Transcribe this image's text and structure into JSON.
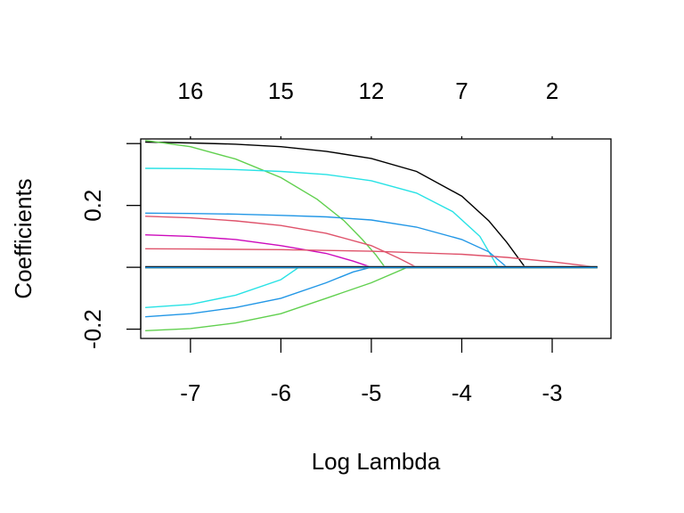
{
  "chart_data": {
    "type": "line",
    "title": "",
    "xlabel": "Log Lambda",
    "ylabel": "Coefficients",
    "xlim": [
      -7.55,
      -2.35
    ],
    "ylim": [
      -0.23,
      0.415
    ],
    "x_ticks": [
      -7,
      -6,
      -5,
      -4,
      -3
    ],
    "x_tick_labels": [
      "-7",
      "-6",
      "-5",
      "-4",
      "-3"
    ],
    "y_ticks": [
      -0.2,
      0.0,
      0.2,
      0.4
    ],
    "y_tick_labels": [
      "-0.2",
      "",
      "0.2",
      ""
    ],
    "top_axis": {
      "positions": [
        -7,
        -6,
        -5,
        -4,
        -3
      ],
      "labels": [
        "16",
        "15",
        "12",
        "7",
        "2"
      ]
    },
    "grid": false,
    "legend": "none",
    "series": [
      {
        "color": "#000000",
        "x": [
          -7.5,
          -7.0,
          -6.5,
          -6.0,
          -5.5,
          -5.0,
          -4.5,
          -4.0,
          -3.7,
          -3.5,
          -3.3,
          -2.5
        ],
        "y": [
          0.405,
          0.402,
          0.398,
          0.39,
          0.375,
          0.352,
          0.31,
          0.23,
          0.15,
          0.08,
          0.0,
          0.0
        ]
      },
      {
        "color": "#61D04F",
        "x": [
          -7.5,
          -7.0,
          -6.5,
          -6.0,
          -5.6,
          -5.3,
          -5.1,
          -4.95,
          -4.85,
          -2.5
        ],
        "y": [
          0.41,
          0.39,
          0.35,
          0.29,
          0.22,
          0.15,
          0.09,
          0.04,
          0.0,
          0.0
        ]
      },
      {
        "color": "#28E2E5",
        "x": [
          -7.5,
          -7.0,
          -6.5,
          -6.0,
          -5.5,
          -5.0,
          -4.5,
          -4.1,
          -3.8,
          -3.6,
          -2.5
        ],
        "y": [
          0.32,
          0.319,
          0.316,
          0.31,
          0.3,
          0.28,
          0.24,
          0.18,
          0.1,
          0.0,
          0.0
        ]
      },
      {
        "color": "#2297E6",
        "x": [
          -7.5,
          -7.0,
          -6.5,
          -6.0,
          -5.5,
          -5.0,
          -4.5,
          -4.0,
          -3.7,
          -3.5,
          -2.5
        ],
        "y": [
          0.175,
          0.174,
          0.172,
          0.168,
          0.163,
          0.153,
          0.13,
          0.09,
          0.05,
          0.0,
          0.0
        ]
      },
      {
        "color": "#DF536B",
        "x": [
          -7.5,
          -7.0,
          -6.5,
          -6.0,
          -5.5,
          -5.0,
          -4.7,
          -4.5,
          -2.5
        ],
        "y": [
          0.165,
          0.16,
          0.15,
          0.135,
          0.11,
          0.07,
          0.03,
          0.0,
          0.0
        ]
      },
      {
        "color": "#CD0BBC",
        "x": [
          -7.5,
          -7.0,
          -6.5,
          -6.0,
          -5.5,
          -5.2,
          -5.0,
          -2.5
        ],
        "y": [
          0.105,
          0.1,
          0.09,
          0.07,
          0.045,
          0.02,
          0.0,
          0.0
        ]
      },
      {
        "color": "#DF536B",
        "x": [
          -7.5,
          -7.0,
          -6.0,
          -5.0,
          -4.0,
          -3.5,
          -3.0,
          -2.5
        ],
        "y": [
          0.06,
          0.059,
          0.057,
          0.052,
          0.042,
          0.032,
          0.018,
          0.0
        ]
      },
      {
        "color": "#28E2E5",
        "x": [
          -7.5,
          -7.0,
          -6.5,
          -6.0,
          -5.8,
          -2.5
        ],
        "y": [
          -0.13,
          -0.12,
          -0.09,
          -0.04,
          0.0,
          0.0
        ]
      },
      {
        "color": "#2297E6",
        "x": [
          -7.5,
          -7.0,
          -6.5,
          -6.0,
          -5.5,
          -5.2,
          -5.0,
          -2.5
        ],
        "y": [
          -0.16,
          -0.15,
          -0.13,
          -0.1,
          -0.05,
          -0.015,
          0.0,
          0.0
        ]
      },
      {
        "color": "#61D04F",
        "x": [
          -7.5,
          -7.0,
          -6.5,
          -6.0,
          -5.5,
          -5.0,
          -4.6,
          -2.5
        ],
        "y": [
          -0.205,
          -0.198,
          -0.18,
          -0.15,
          -0.1,
          -0.05,
          0.0,
          0.0
        ]
      },
      {
        "color": "#9E9E9E",
        "x": [
          -7.5,
          -2.5
        ],
        "y": [
          0.003,
          0.003
        ]
      },
      {
        "color": "#F5C710",
        "x": [
          -7.5,
          -2.5
        ],
        "y": [
          -0.002,
          -0.002
        ]
      },
      {
        "color": "#000000",
        "x": [
          -7.5,
          -2.5
        ],
        "y": [
          0.0,
          0.0
        ]
      },
      {
        "color": "#2297E6",
        "x": [
          -7.5,
          -2.5
        ],
        "y": [
          -0.001,
          -0.001
        ]
      }
    ]
  }
}
